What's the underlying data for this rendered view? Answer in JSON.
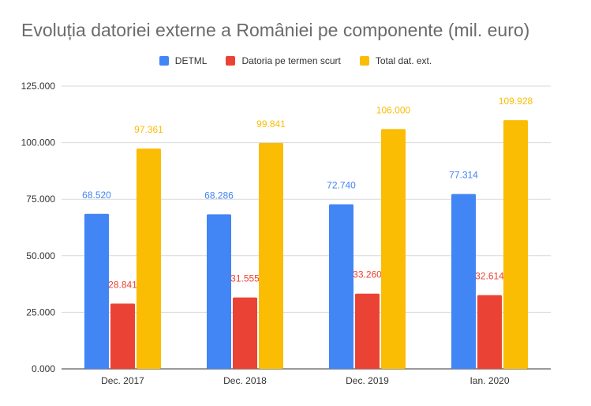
{
  "chart_data": {
    "type": "bar",
    "title": "Evoluția datoriei externe a României pe componente (mil. euro)",
    "categories": [
      "Dec. 2017",
      "Dec. 2018",
      "Dec. 2019",
      "Ian. 2020"
    ],
    "series": [
      {
        "name": "DETML",
        "color": "#4285f4",
        "values": [
          68520,
          68286,
          72740,
          77314
        ],
        "labels": [
          "68.520",
          "68.286",
          "72.740",
          "77.314"
        ]
      },
      {
        "name": "Datoria pe termen scurt",
        "color": "#ea4335",
        "values": [
          28841,
          31555,
          33260,
          32614
        ],
        "labels": [
          "28.841",
          "31.555",
          "33.260",
          "32.614"
        ]
      },
      {
        "name": "Total dat. ext.",
        "color": "#fbbc04",
        "values": [
          97361,
          99841,
          106000,
          109928
        ],
        "labels": [
          "97.361",
          "99.841",
          "106.000",
          "109.928"
        ]
      }
    ],
    "ylim": [
      0,
      125000
    ],
    "yticks": [
      0,
      25000,
      50000,
      75000,
      100000,
      125000
    ],
    "ytick_labels": [
      "0.000",
      "25.000",
      "50.000",
      "75.000",
      "100.000",
      "125.000"
    ],
    "grid": true,
    "legend_position": "top-center",
    "xlabel": "",
    "ylabel": ""
  }
}
